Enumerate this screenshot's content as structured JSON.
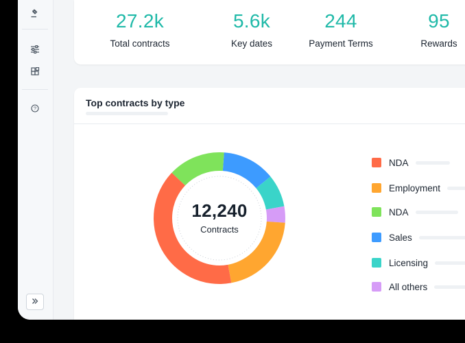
{
  "stats": [
    {
      "value": "27.2k",
      "label": "Total contracts"
    },
    {
      "value": "5.6k",
      "label": "Key dates"
    },
    {
      "value": "244",
      "label": "Payment Terms"
    },
    {
      "value": "95",
      "label": "Rewards"
    }
  ],
  "sidebar": {
    "icons": [
      "gavel-icon",
      "sliders-icon",
      "blocks-icon",
      "help-icon"
    ],
    "expand_icon": "chevrons-right-icon"
  },
  "chart_card": {
    "title": "Top contracts by type"
  },
  "chart_data": {
    "type": "pie",
    "center_value": "12,240",
    "center_label": "Contracts",
    "categories": [
      "NDA",
      "Employment",
      "NDA",
      "Sales",
      "Licensing",
      "All others"
    ],
    "values": [
      40,
      21,
      14,
      13,
      8,
      4
    ],
    "colors": [
      "#ff6b47",
      "#ffa630",
      "#7fe35b",
      "#3d9bff",
      "#3ad4c9",
      "#d69cf7"
    ]
  }
}
